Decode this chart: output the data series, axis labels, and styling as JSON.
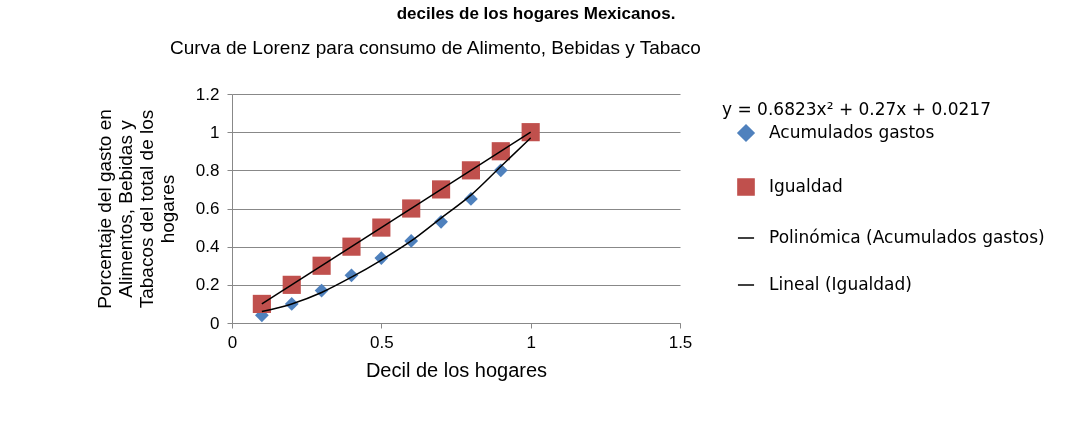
{
  "chart_data": {
    "type": "scatter",
    "title": "Curva de Lorenz para consumo de Alimento, Bebidas y Tabaco",
    "xlabel": "Decil de los hogares",
    "ylabel": "Porcentaje del gasto en Alimentos, Bebidas y Tabacos del total de los hogares",
    "annotations": [
      "deciles de los hogares Mexicanos.",
      "y = 0.6823x² + 0.27x + 0.0217"
    ],
    "x": [
      0.1,
      0.2,
      0.3,
      0.4,
      0.5,
      0.6,
      0.7,
      0.8,
      0.9,
      1.0
    ],
    "series": [
      {
        "name": "Acumulados gastos",
        "color": "#4f81bd",
        "marker": "diamond",
        "values": [
          0.04,
          0.1,
          0.17,
          0.25,
          0.34,
          0.43,
          0.53,
          0.65,
          0.8,
          null
        ]
      },
      {
        "name": "Igualdad",
        "color": "#c0504d",
        "marker": "square",
        "values": [
          0.1,
          0.2,
          0.3,
          0.4,
          0.5,
          0.6,
          0.7,
          0.8,
          0.9,
          1.0
        ]
      },
      {
        "name": "Polinómica (Acumulados gastos)",
        "type": "line",
        "color": "#000000",
        "marker": "none",
        "x": [
          0.1,
          0.2,
          0.3,
          0.4,
          0.5,
          0.6,
          0.7,
          0.8,
          0.9,
          1.0
        ],
        "values": [
          0.06,
          0.1,
          0.16,
          0.24,
          0.33,
          0.43,
          0.55,
          0.67,
          0.82,
          0.97
        ]
      },
      {
        "name": "Lineal (Igualdad)",
        "type": "line",
        "color": "#000000",
        "marker": "none",
        "x": [
          0.1,
          1.0
        ],
        "values": [
          0.1,
          1.0
        ]
      }
    ],
    "xlim": [
      0,
      1.5
    ],
    "xticks": [
      0,
      0.5,
      1,
      1.5
    ],
    "ylim": [
      0,
      1.2
    ],
    "yticks": [
      0,
      0.2,
      0.4,
      0.6,
      0.8,
      1,
      1.2
    ],
    "grid": "y",
    "legend": "right"
  }
}
